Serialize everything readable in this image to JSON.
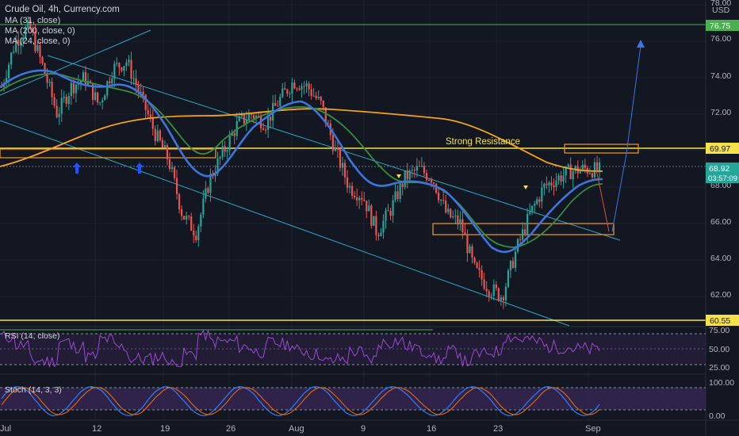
{
  "header": {
    "title": "Crude Oil, 4h, Currency.com",
    "ma1": "MA (31, close)",
    "ma2": "MA (200, close, 0)",
    "ma3": "MA (24, close, 0)",
    "currency": "USD"
  },
  "annotations": {
    "strong_resistance": "Strong Resistance"
  },
  "price_axis": {
    "ticks": [
      "78.00",
      "76.00",
      "74.00",
      "72.00",
      "70.00",
      "68.00",
      "66.00",
      "64.00",
      "62.00"
    ],
    "line_labels": [
      {
        "value": 76.75,
        "label": "76.75",
        "color": "#4caf50"
      },
      {
        "value": 69.97,
        "label": "69.97",
        "color": "#f5e24a"
      },
      {
        "value": 60.55,
        "label": "60.55",
        "color": "#f5e24a"
      }
    ],
    "last_price": "68.92",
    "countdown": "03:57:09"
  },
  "rsi_panel": {
    "label": "RSI (14, close)",
    "ticks": [
      "75.00",
      "50.00",
      "25.00"
    ]
  },
  "stoch_panel": {
    "label": "Stoch (14, 3, 3)",
    "ticks": [
      "100.00",
      "0.00"
    ]
  },
  "time_axis": {
    "ticks": [
      "Jul",
      "12",
      "19",
      "26",
      "Aug",
      "9",
      "16",
      "23",
      "Sep"
    ]
  },
  "chart_data": {
    "type": "candlestick",
    "symbol": "Crude Oil",
    "timeframe": "4h",
    "source": "Currency.com",
    "y_range": [
      60.0,
      78.0
    ],
    "horizontal_levels": [
      76.75,
      69.97,
      60.55
    ],
    "close_path": [
      [
        "Jul",
        73.5
      ],
      [
        "Jul",
        76.0
      ],
      [
        "Jul",
        76.8
      ],
      [
        "Jul",
        74.5
      ],
      [
        "Jul",
        72.0
      ],
      [
        "12",
        73.5
      ],
      [
        "12",
        74.0
      ],
      [
        "12",
        72.5
      ],
      [
        "12",
        74.5
      ],
      [
        "12",
        74.9
      ],
      [
        "19",
        73.0
      ],
      [
        "19",
        71.0
      ],
      [
        "19",
        69.5
      ],
      [
        "19",
        66.5
      ],
      [
        "19",
        65.5
      ],
      [
        "26",
        68.5
      ],
      [
        "26",
        70.0
      ],
      [
        "26",
        71.5
      ],
      [
        "26",
        72.0
      ],
      [
        "26",
        71.5
      ],
      [
        "Aug",
        72.8
      ],
      [
        "Aug",
        73.8
      ],
      [
        "Aug",
        73.5
      ],
      [
        "Aug",
        72.5
      ],
      [
        "Aug",
        70.0
      ],
      [
        "9",
        68.0
      ],
      [
        "9",
        67.5
      ],
      [
        "9",
        65.5
      ],
      [
        "9",
        66.8
      ],
      [
        "9",
        68.5
      ],
      [
        "16",
        69.0
      ],
      [
        "16",
        68.5
      ],
      [
        "16",
        66.5
      ],
      [
        "16",
        66.0
      ],
      [
        "16",
        63.5
      ],
      [
        "23",
        62.5
      ],
      [
        "23",
        62.0
      ],
      [
        "23",
        64.5
      ],
      [
        "23",
        66.5
      ],
      [
        "23",
        68.0
      ],
      [
        "Sep",
        68.5
      ],
      [
        "Sep",
        68.9
      ],
      [
        "Sep",
        69.0
      ],
      [
        "Sep",
        68.92
      ]
    ]
  }
}
